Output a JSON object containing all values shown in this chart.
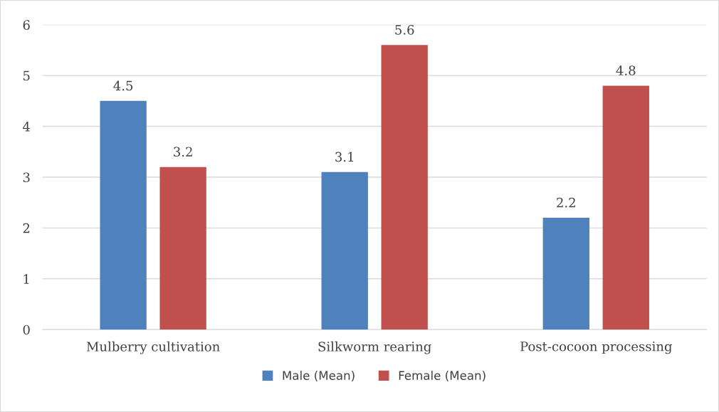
{
  "chart_data": {
    "type": "bar",
    "categories": [
      "Mulberry cultivation",
      "Silkworm rearing",
      "Post-cocoon processing"
    ],
    "series": [
      {
        "name": "Male (Mean)",
        "color": "#4f81bd",
        "values": [
          4.5,
          3.1,
          2.2
        ]
      },
      {
        "name": "Female (Mean)",
        "color": "#c0504d",
        "values": [
          3.2,
          5.6,
          4.8
        ]
      }
    ],
    "ylim": [
      0,
      6
    ],
    "yticks": [
      0,
      1,
      2,
      3,
      4,
      5,
      6
    ],
    "grid": "y",
    "legend": "bottom",
    "data_labels": true
  }
}
